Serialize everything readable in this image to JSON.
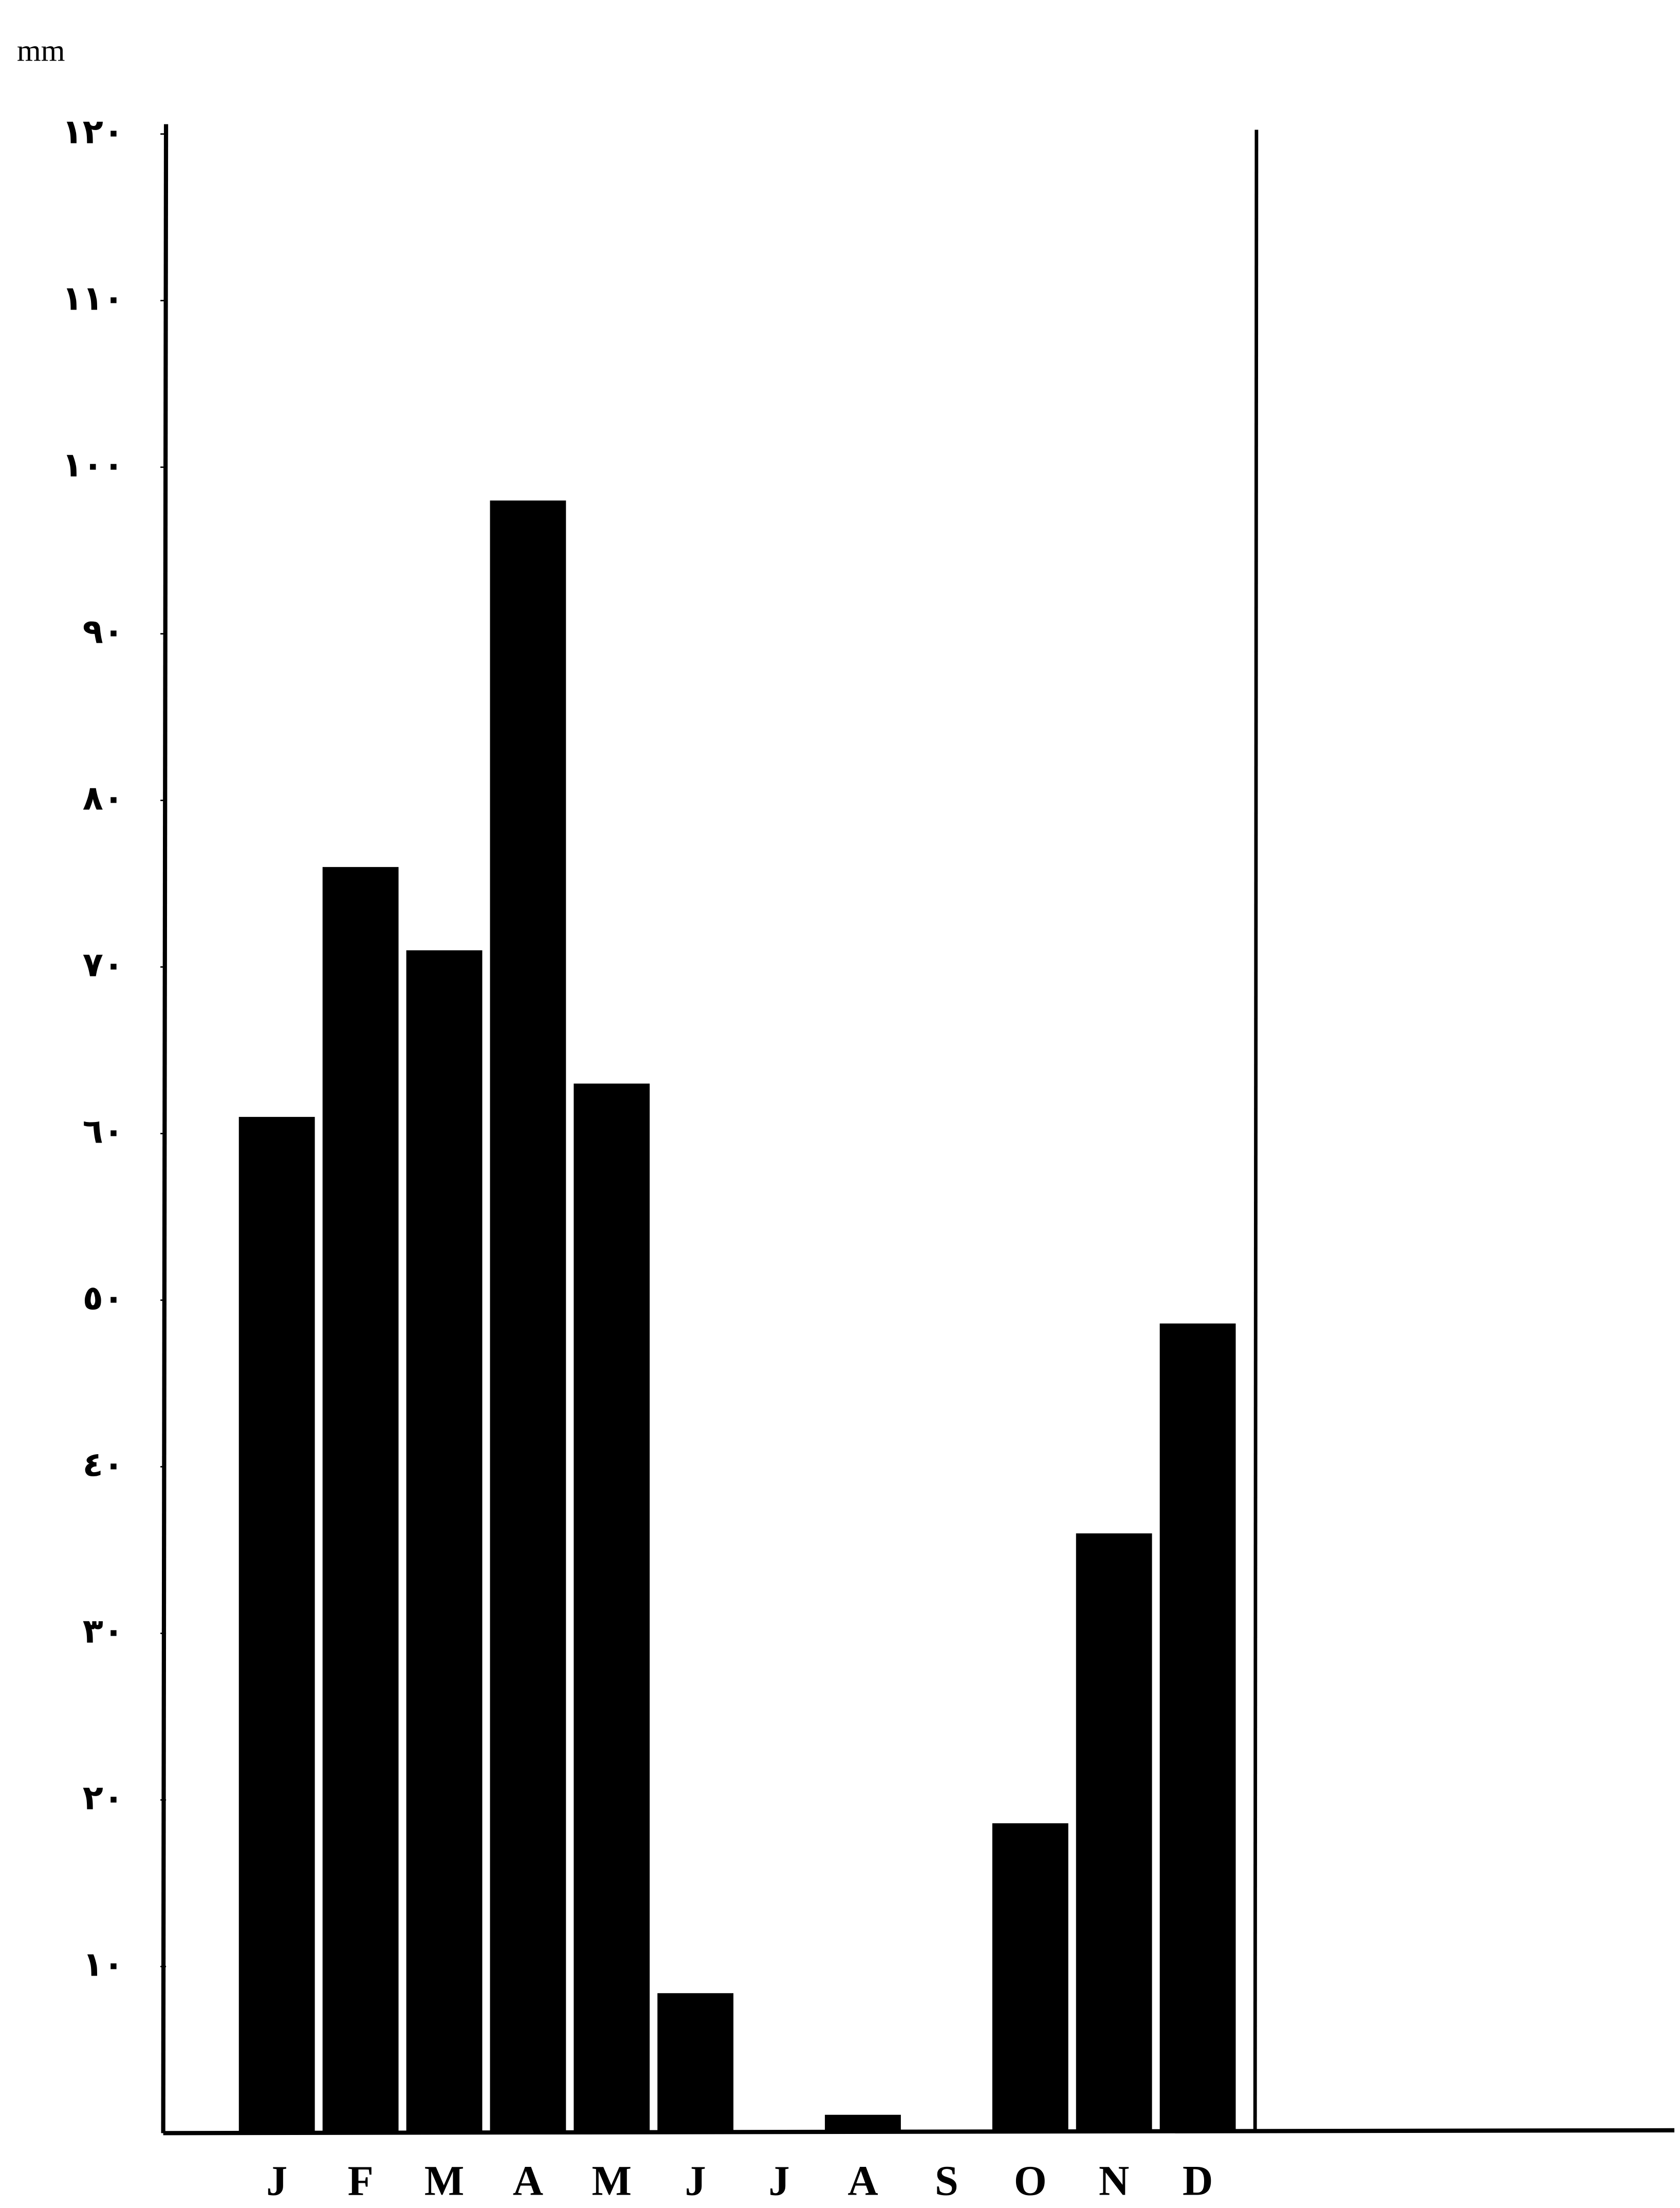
{
  "chart_data": {
    "type": "bar",
    "ylabel": "mm",
    "categories": [
      "J",
      "F",
      "M",
      "A",
      "M",
      "J",
      "J",
      "A",
      "S",
      "O",
      "N",
      "D"
    ],
    "values": [
      61,
      76,
      71,
      98,
      63,
      8.4,
      0,
      1.1,
      0,
      18.6,
      36,
      48.6
    ],
    "color": "#000000",
    "ylim": [
      0,
      120
    ],
    "yticks": [
      {
        "value": 10,
        "label": "١٠"
      },
      {
        "value": 20,
        "label": "٢٠"
      },
      {
        "value": 30,
        "label": "٣٠"
      },
      {
        "value": 40,
        "label": "٤٠"
      },
      {
        "value": 50,
        "label": "٥٠"
      },
      {
        "value": 60,
        "label": "٦٠"
      },
      {
        "value": 70,
        "label": "٧٠"
      },
      {
        "value": 80,
        "label": "٨٠"
      },
      {
        "value": 90,
        "label": "٩٠"
      },
      {
        "value": 100,
        "label": "١٠٠"
      },
      {
        "value": 110,
        "label": "١١٠"
      },
      {
        "value": 120,
        "label": "١٢٠"
      }
    ],
    "grid": false
  }
}
